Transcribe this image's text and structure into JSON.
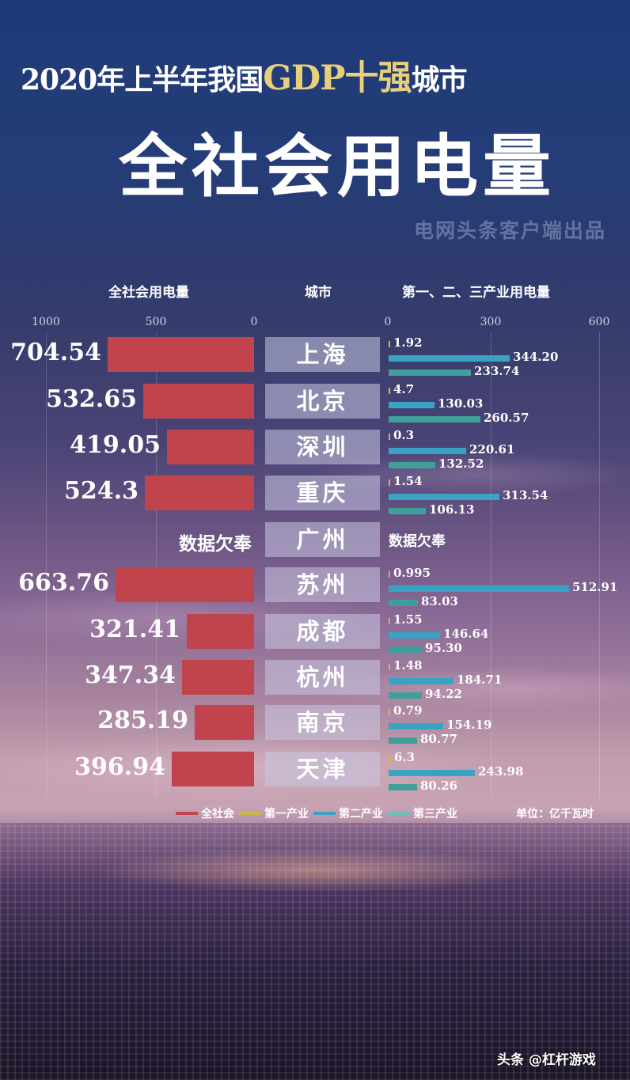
{
  "header": {
    "title_line1_pre": "2020年上半年我国",
    "title_line1_gold": "GDP十强",
    "title_line1_post": "城市",
    "title_main": "全社会用电量",
    "source": "电网头条客户端出品"
  },
  "columns": {
    "left": "全社会用电量",
    "middle": "城市",
    "right": "第一、二、三产业用电量"
  },
  "axes": {
    "left_ticks": [
      "1000",
      "500",
      "0"
    ],
    "right_ticks": [
      "0",
      "300",
      "600"
    ]
  },
  "missing_label": "数据欠奉",
  "legend": {
    "items": [
      {
        "label": "全社会",
        "color": "#c1434c"
      },
      {
        "label": "第一产业",
        "color": "#c8b64a"
      },
      {
        "label": "第二产业",
        "color": "#3aa3c4"
      },
      {
        "label": "第三产业",
        "color": "#6fc0b8"
      }
    ],
    "unit": "单位：亿千瓦时"
  },
  "watermark": "头条 @杠杆游戏",
  "chart_data": {
    "type": "bar",
    "title": "2020年上半年我国GDP十强城市 全社会用电量",
    "subtitle": "电网头条客户端出品",
    "unit": "亿千瓦时",
    "categories": [
      "上海",
      "北京",
      "深圳",
      "重庆",
      "广州",
      "苏州",
      "成都",
      "杭州",
      "南京",
      "天津"
    ],
    "series": [
      {
        "name": "全社会",
        "values": [
          704.54,
          532.65,
          419.05,
          524.3,
          null,
          663.76,
          321.41,
          347.34,
          285.19,
          396.94
        ],
        "labels": [
          "704.54",
          "532.65",
          "419.05",
          "524.3",
          "数据欠奉",
          "663.76",
          "321.41",
          "347.34",
          "285.19",
          "396.94"
        ]
      },
      {
        "name": "第一产业",
        "values": [
          1.92,
          4.7,
          0.3,
          1.54,
          null,
          0.995,
          1.55,
          1.48,
          0.79,
          6.3
        ],
        "labels": [
          "1.92",
          "4.7",
          "0.3",
          "1.54",
          "数据欠奉",
          "0.995",
          "1.55",
          "1.48",
          "0.79",
          "6.3"
        ]
      },
      {
        "name": "第二产业",
        "values": [
          344.2,
          130.03,
          220.61,
          313.54,
          null,
          512.91,
          146.64,
          184.71,
          154.19,
          243.98
        ],
        "labels": [
          "344.20",
          "130.03",
          "220.61",
          "313.54",
          "",
          "512.91",
          "146.64",
          "184.71",
          "154.19",
          "243.98"
        ]
      },
      {
        "name": "第三产业",
        "values": [
          233.74,
          260.57,
          132.52,
          106.13,
          null,
          83.03,
          95.3,
          94.22,
          80.77,
          80.26
        ],
        "labels": [
          "233.74",
          "260.57",
          "132.52",
          "106.13",
          "",
          "83.03",
          "95.30",
          "94.22",
          "80.77",
          "80.26"
        ]
      }
    ],
    "left_axis": {
      "range": [
        1000,
        0
      ],
      "ticks": [
        1000,
        500,
        0
      ],
      "reversed": true
    },
    "right_axis": {
      "range": [
        0,
        600
      ],
      "ticks": [
        0,
        300,
        600
      ]
    },
    "grid": true,
    "legend_position": "bottom"
  }
}
